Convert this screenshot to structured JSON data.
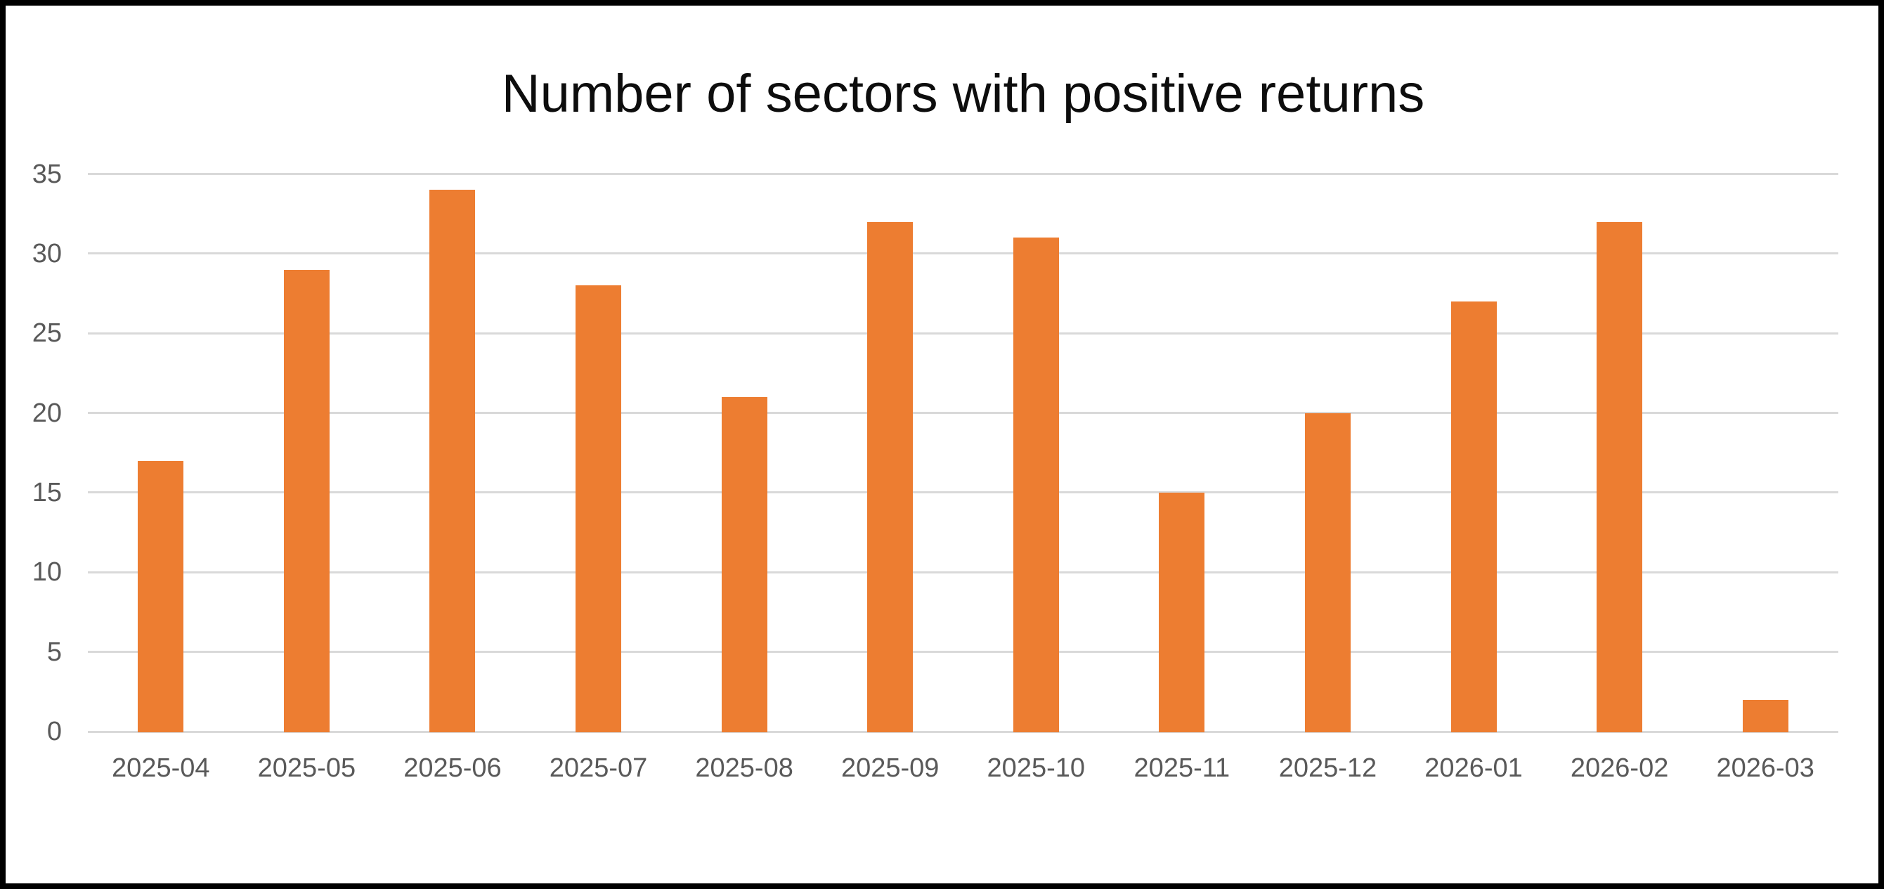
{
  "frame": {
    "background_color": "#FFFFFF",
    "border_color": "#000000"
  },
  "chart_data": {
    "type": "bar",
    "title": "Number of sectors with positive returns",
    "xlabel": "",
    "ylabel": "",
    "categories": [
      "2025-04",
      "2025-05",
      "2025-06",
      "2025-07",
      "2025-08",
      "2025-09",
      "2025-10",
      "2025-11",
      "2025-12",
      "2026-01",
      "2026-02",
      "2026-03"
    ],
    "values": [
      17,
      29,
      34,
      28,
      21,
      32,
      31,
      15,
      20,
      27,
      32,
      2
    ],
    "ylim": [
      0,
      35
    ],
    "ytick_step": 5,
    "ytick_labels": [
      "0",
      "5",
      "10",
      "15",
      "20",
      "25",
      "30",
      "35"
    ],
    "grid": "horizontal",
    "legend": "none",
    "bar_color": "#ED7D31",
    "gridline_color": "#D9D9D9",
    "tick_label_color": "#595959",
    "title_color": "#0D0D0D"
  }
}
